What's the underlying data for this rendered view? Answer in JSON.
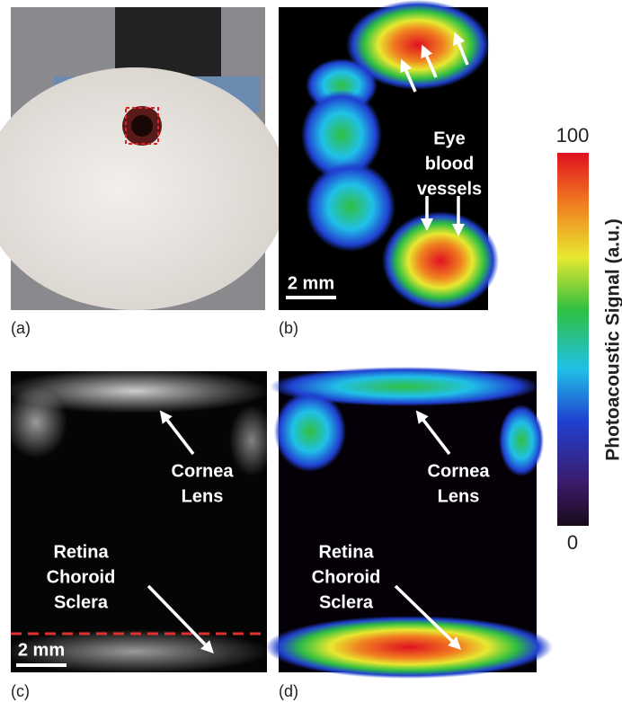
{
  "panels": [
    {
      "label": "(a)"
    },
    {
      "label": "(b)",
      "annotations": [
        [
          "Eye",
          "blood",
          "vessels"
        ]
      ],
      "scale_bar": "2 mm"
    },
    {
      "label": "(c)",
      "annotations": [
        [
          "Cornea",
          "Lens"
        ],
        [
          "Retina",
          "Choroid",
          "Sclera"
        ]
      ],
      "scale_bar": "2 mm"
    },
    {
      "label": "(d)",
      "annotations": [
        [
          "Cornea",
          "Lens"
        ],
        [
          "Retina",
          "Choroid",
          "Sclera"
        ]
      ]
    }
  ],
  "colorbar": {
    "title": "Photoacoustic Signal (a.u.)",
    "max": 100,
    "min": 0
  }
}
